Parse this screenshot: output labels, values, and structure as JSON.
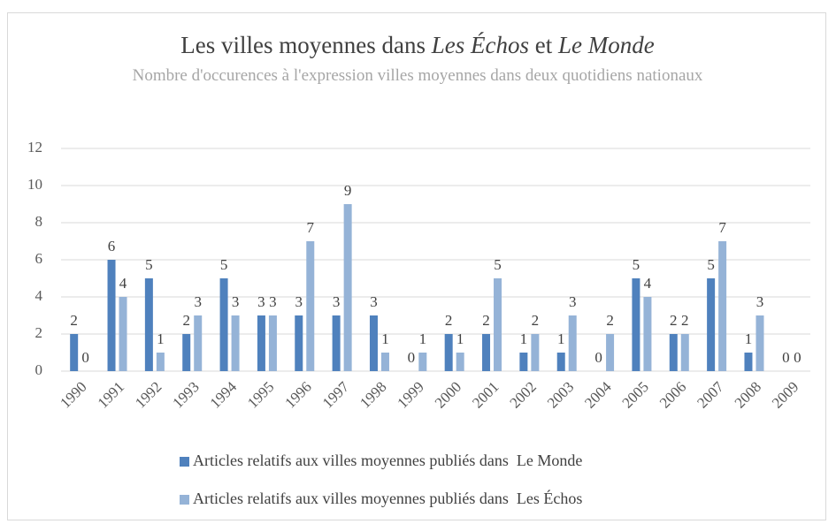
{
  "chart_data": {
    "type": "bar",
    "title": [
      "Les villes moyennes dans ",
      "Les Échos",
      " et ",
      "Le Monde"
    ],
    "subtitle": "Nombre d'occurences à l'expression villes moyennes dans deux quotidiens nationaux",
    "categories": [
      "1990",
      "1991",
      "1992",
      "1993",
      "1994",
      "1995",
      "1996",
      "1997",
      "1998",
      "1999",
      "2000",
      "2001",
      "2002",
      "2003",
      "2004",
      "2005",
      "2006",
      "2007",
      "2008",
      "2009"
    ],
    "series": [
      {
        "name": "Articles relatifs aux villes moyennes publiés dans  Le Monde",
        "color": "#4f81bd",
        "values": [
          2,
          6,
          5,
          2,
          5,
          3,
          3,
          3,
          3,
          0,
          2,
          2,
          1,
          1,
          0,
          5,
          2,
          5,
          1,
          0
        ]
      },
      {
        "name": "Articles relatifs aux villes moyennes publiés dans  Les Échos",
        "color": "#95b3d7",
        "values": [
          0,
          4,
          1,
          3,
          3,
          3,
          7,
          9,
          1,
          1,
          1,
          5,
          2,
          3,
          2,
          4,
          2,
          7,
          3,
          0
        ]
      }
    ],
    "ylim": [
      0,
      12
    ],
    "yticks": [
      0,
      2,
      4,
      6,
      8,
      10,
      12
    ],
    "grid": true,
    "legend": "bottom"
  }
}
